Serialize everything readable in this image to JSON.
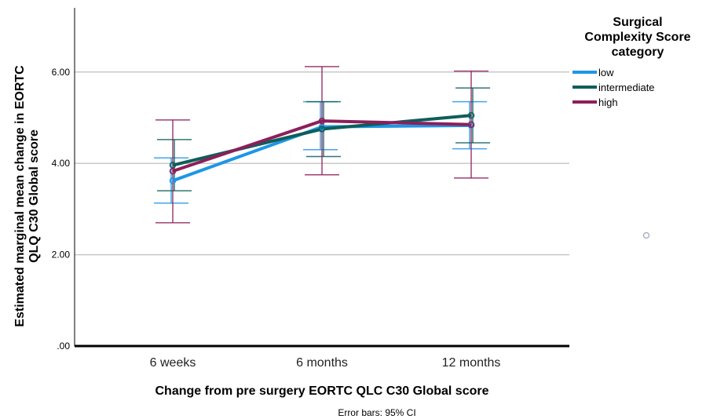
{
  "chart_data": {
    "type": "line",
    "title": "",
    "xlabel": "Change from pre surgery EORTC QLC C30 Global score",
    "ylabel_lines": [
      "Estimated marginal mean change in EORTC",
      "QLQ C30 Global score"
    ],
    "categories": [
      "6 weeks",
      "6 months",
      "12 months"
    ],
    "ylim": [
      0,
      7.5
    ],
    "yticks": [
      0,
      2,
      4,
      6
    ],
    "ytick_labels": [
      ".00",
      "2.00",
      "4.00",
      "6.00"
    ],
    "grid": true,
    "legend_title_lines": [
      "Surgical",
      "Complexity Score",
      "category"
    ],
    "legend_position": "top-right",
    "footnote": "Error bars: 95% CI",
    "series": [
      {
        "name": "low",
        "color": "#1e96e6",
        "values": [
          3.62,
          4.8,
          4.83
        ],
        "ci_low": [
          3.13,
          4.3,
          4.32
        ],
        "ci_high": [
          4.12,
          5.35,
          5.35
        ]
      },
      {
        "name": "intermediate",
        "color": "#0e5e5a",
        "values": [
          3.96,
          4.75,
          5.05
        ],
        "ci_low": [
          3.4,
          4.15,
          4.45
        ],
        "ci_high": [
          4.52,
          5.35,
          5.65
        ]
      },
      {
        "name": "high",
        "color": "#8c1f5a",
        "values": [
          3.83,
          4.93,
          4.85
        ],
        "ci_low": [
          2.7,
          3.75,
          3.68
        ],
        "ci_high": [
          4.95,
          6.12,
          6.02
        ]
      }
    ]
  }
}
